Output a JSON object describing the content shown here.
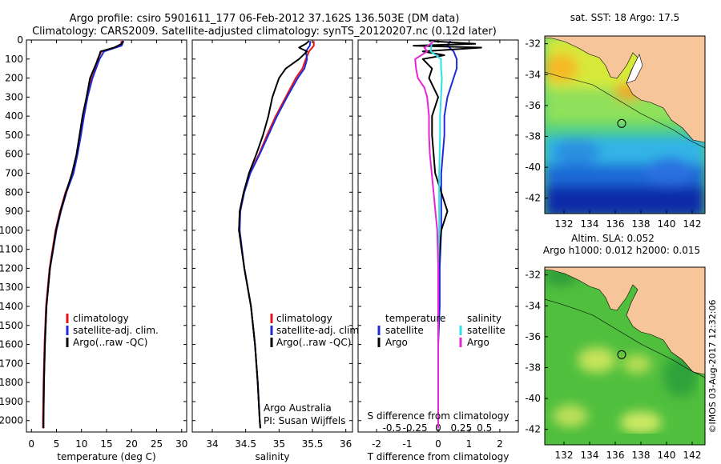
{
  "header": {
    "title_line1": "Argo profile: csiro 5901611_177 06-Feb-2012 37.162S 136.503E (DM data)",
    "title_line2": "Climatology: CARS2009. Satellite-adjusted climatology: synTS_20120207.nc (0.12d later)"
  },
  "colors": {
    "climatology": "#e8121b",
    "satellite": "#1f2bd8",
    "argo": "#000000",
    "salinity_satellite": "#29e3e9",
    "salinity_argo": "#e526d2",
    "land": "#f6c69a"
  },
  "chart_data": [
    {
      "type": "line",
      "panel": "temperature",
      "xlabel": "temperature (deg C)",
      "xlim": [
        -1,
        31
      ],
      "xticks": [
        0,
        5,
        10,
        15,
        20,
        25,
        30
      ],
      "ylim": [
        2060,
        0
      ],
      "yticks": [
        0,
        100,
        200,
        300,
        400,
        500,
        600,
        700,
        800,
        900,
        1000,
        1100,
        1200,
        1300,
        1400,
        1500,
        1600,
        1700,
        1800,
        1900,
        2000
      ],
      "legend": [
        "climatology",
        "satellite-adj. clim.",
        "Argo(..raw -QC)"
      ],
      "series": [
        {
          "name": "climatology",
          "depth": [
            5,
            30,
            60,
            100,
            150,
            200,
            300,
            400,
            500,
            600,
            700,
            800,
            900,
            1000,
            1200,
            1400,
            1600,
            1800,
            2000,
            2040
          ],
          "values": [
            18.0,
            17.8,
            14.0,
            13.2,
            12.8,
            12.0,
            11.0,
            10.4,
            9.8,
            9.1,
            8.3,
            6.8,
            5.7,
            4.8,
            3.6,
            2.9,
            2.6,
            2.4,
            2.3,
            2.3
          ]
        },
        {
          "name": "satellite-adj. clim.",
          "depth": [
            5,
            30,
            60,
            100,
            150,
            200,
            300,
            400,
            500,
            600,
            700,
            800,
            900,
            1000,
            1200,
            1400,
            1600,
            1800,
            2000,
            2040
          ],
          "values": [
            18.4,
            18.0,
            14.5,
            13.6,
            12.9,
            12.2,
            11.2,
            10.5,
            9.9,
            9.2,
            8.4,
            7.0,
            5.9,
            5.0,
            3.7,
            3.0,
            2.7,
            2.5,
            2.4,
            2.4
          ]
        },
        {
          "name": "Argo(..raw -QC)",
          "depth": [
            5,
            20,
            40,
            60,
            100,
            150,
            200,
            300,
            400,
            500,
            600,
            700,
            800,
            900,
            1000,
            1200,
            1400,
            1600,
            1800,
            2000,
            2040
          ],
          "values": [
            18.3,
            18.0,
            16.5,
            13.8,
            13.3,
            12.5,
            11.7,
            11.0,
            10.2,
            9.6,
            9.0,
            8.1,
            6.9,
            5.8,
            4.9,
            3.7,
            3.0,
            2.7,
            2.5,
            2.4,
            2.4
          ]
        }
      ]
    },
    {
      "type": "line",
      "panel": "salinity",
      "xlabel": "salinity",
      "xlim": [
        33.7,
        36.1
      ],
      "xticks": [
        34,
        34.5,
        35,
        35.5,
        36
      ],
      "ylim": [
        2060,
        0
      ],
      "legend": [
        "climatology",
        "satellite-adj. clim.",
        "Argo(..raw -QC)"
      ],
      "annotation": [
        "Argo Australia",
        "PI: Susan Wijffels"
      ],
      "series": [
        {
          "name": "climatology",
          "depth": [
            5,
            30,
            60,
            100,
            150,
            200,
            300,
            400,
            500,
            600,
            700,
            800,
            900,
            1000,
            1200,
            1400,
            1600,
            1800,
            2000,
            2040
          ],
          "values": [
            35.52,
            35.52,
            35.45,
            35.4,
            35.35,
            35.25,
            35.1,
            34.95,
            34.82,
            34.7,
            34.56,
            34.47,
            34.41,
            34.4,
            34.48,
            34.58,
            34.64,
            34.68,
            34.71,
            34.72
          ]
        },
        {
          "name": "satellite-adj. clim.",
          "depth": [
            5,
            30,
            60,
            100,
            150,
            200,
            300,
            400,
            500,
            600,
            700,
            800,
            900,
            1000,
            1200,
            1400,
            1600,
            1800,
            2000,
            2040
          ],
          "values": [
            35.47,
            35.46,
            35.4,
            35.42,
            35.38,
            35.28,
            35.12,
            34.97,
            34.84,
            34.71,
            34.57,
            34.48,
            34.42,
            34.41,
            34.48,
            34.58,
            34.64,
            34.68,
            34.71,
            34.72
          ]
        },
        {
          "name": "Argo(..raw -QC)",
          "depth": [
            5,
            20,
            40,
            60,
            100,
            150,
            200,
            300,
            400,
            500,
            600,
            700,
            800,
            900,
            1000,
            1200,
            1400,
            1600,
            1800,
            2000,
            2040
          ],
          "values": [
            35.45,
            35.4,
            35.3,
            35.42,
            35.3,
            35.1,
            35.0,
            34.9,
            34.84,
            34.76,
            34.66,
            34.55,
            34.47,
            34.41,
            34.4,
            34.48,
            34.58,
            34.64,
            34.68,
            34.71,
            34.72
          ]
        }
      ]
    },
    {
      "type": "line",
      "panel": "differences",
      "xlabel": "T difference from climatology",
      "xlim": [
        -2.6,
        2.6
      ],
      "xticks": [
        -2,
        -1,
        0,
        1,
        2
      ],
      "secondary_xlabel": "S difference from climatology",
      "secondary_xticks": [
        "-0.5",
        "-0.25",
        "0",
        "0.25",
        "0.5"
      ],
      "ylim": [
        2060,
        0
      ],
      "legend": {
        "temperature": [
          "satellite",
          "Argo"
        ],
        "salinity": [
          "satellite",
          "Argo"
        ]
      },
      "legend_headers": [
        "temperature",
        "salinity"
      ],
      "series": [
        {
          "name": "temperature satellite",
          "depth": [
            5,
            30,
            60,
            100,
            150,
            200,
            300,
            400,
            500,
            700,
            900,
            1000,
            1200,
            1400,
            1600,
            1800,
            2000,
            2040
          ],
          "values": [
            0.4,
            0.3,
            0.5,
            0.6,
            0.6,
            0.5,
            0.3,
            0.2,
            0.2,
            0.1,
            0.1,
            0.1,
            0.05,
            0.05,
            0.0,
            0.0,
            0.0,
            0.0
          ]
        },
        {
          "name": "temperature Argo",
          "depth": [
            5,
            20,
            30,
            40,
            60,
            80,
            100,
            150,
            200,
            300,
            400,
            500,
            700,
            900,
            1000,
            1200,
            1400,
            1600,
            1800,
            2000,
            2040
          ],
          "values": [
            -0.3,
            1.2,
            -0.8,
            1.4,
            -0.5,
            0.2,
            -0.5,
            -0.2,
            -0.3,
            0.0,
            -0.2,
            -0.2,
            -0.1,
            0.3,
            0.1,
            0.0,
            0.0,
            0.0,
            0.0,
            0.0,
            0.0
          ]
        },
        {
          "name": "salinity satellite",
          "depth": [
            5,
            60,
            100,
            150,
            200,
            300,
            400,
            500,
            700,
            900,
            1000,
            1200,
            1400,
            1600,
            1800,
            2000,
            2040
          ],
          "values": [
            -0.07,
            -0.08,
            0.03,
            0.03,
            0.04,
            0.03,
            0.02,
            0.02,
            0.01,
            0.01,
            0.01,
            0.0,
            0.0,
            0.0,
            0.0,
            0.0,
            0.0
          ]
        },
        {
          "name": "salinity Argo",
          "depth": [
            5,
            20,
            40,
            60,
            100,
            150,
            200,
            250,
            300,
            400,
            500,
            600,
            800,
            1000,
            1200,
            1400,
            1600,
            1800,
            2000,
            2040
          ],
          "values": [
            -0.05,
            -0.08,
            -0.15,
            -0.12,
            -0.25,
            -0.24,
            -0.22,
            -0.15,
            -0.12,
            -0.1,
            -0.1,
            -0.09,
            -0.05,
            -0.01,
            0.0,
            0.0,
            0.0,
            0.0,
            0.0,
            0.0
          ]
        }
      ]
    },
    {
      "type": "heatmap",
      "panel": "sst_map",
      "title": "sat. SST: 18 Argo: 17.5",
      "xlim": [
        130.5,
        143
      ],
      "xticks": [
        132,
        134,
        136,
        138,
        140,
        142
      ],
      "ylim": [
        -43,
        -31.5
      ],
      "yticks": [
        -32,
        -34,
        -36,
        -38,
        -40,
        -42
      ],
      "marker": {
        "lon": 136.503,
        "lat": -37.162
      }
    },
    {
      "type": "heatmap",
      "panel": "sla_map",
      "title_line1": "Altim. SLA: 0.052",
      "title_line2": "Argo h1000: 0.012 h2000: 0.015",
      "xlim": [
        130.5,
        143
      ],
      "xticks": [
        132,
        134,
        136,
        138,
        140,
        142
      ],
      "ylim": [
        -43,
        -31.5
      ],
      "yticks": [
        -32,
        -34,
        -36,
        -38,
        -40,
        -42
      ],
      "marker": {
        "lon": 136.503,
        "lat": -37.162
      }
    }
  ],
  "footer": {
    "stamp": "©IMOS 03-Aug-2017 12:32:06"
  }
}
